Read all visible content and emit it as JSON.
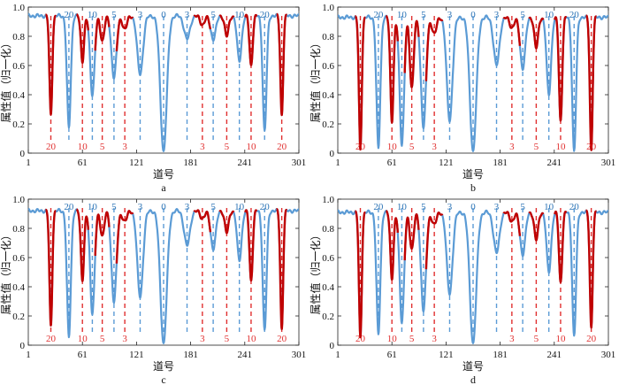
{
  "chart_data": [
    {
      "type": "line",
      "panel_label": "a",
      "xlabel": "道号",
      "ylabel": "属性值（归一化）",
      "xlim": [
        1,
        301
      ],
      "ylim": [
        0,
        1.0
      ],
      "xticks": [
        1,
        61,
        121,
        181,
        241,
        301
      ],
      "yticks": [
        0,
        0.2,
        0.4,
        0.6,
        0.8,
        1.0
      ],
      "xtick_labels": [
        "1",
        "61",
        "121",
        "181",
        "241",
        "301"
      ],
      "ytick_labels": [
        "0",
        "0.2",
        "0.4",
        "0.6",
        "0.8",
        "1.0"
      ],
      "baseline": 0.94,
      "colors": {
        "blue": "#5b9bd5",
        "red": "#c00000",
        "blue_text": "#2e75b6",
        "red_text": "#e03030"
      },
      "dips": [
        {
          "x": 26,
          "min": 0.26,
          "width": 2.2,
          "color": "red",
          "label": "20"
        },
        {
          "x": 46,
          "min": 0.17,
          "width": 3.0,
          "color": "blue",
          "label": "20"
        },
        {
          "x": 61,
          "min": 0.63,
          "width": 2.5,
          "color": "red",
          "label": "10"
        },
        {
          "x": 72,
          "min": 0.4,
          "width": 3.5,
          "color": "blue",
          "label": "10"
        },
        {
          "x": 83,
          "min": 0.77,
          "width": 3.0,
          "color": "red",
          "label": "5"
        },
        {
          "x": 96,
          "min": 0.52,
          "width": 4.0,
          "color": "blue",
          "label": "5"
        },
        {
          "x": 108,
          "min": 0.85,
          "width": 3.5,
          "color": "red",
          "label": "3"
        },
        {
          "x": 125,
          "min": 0.54,
          "width": 4.5,
          "color": "blue",
          "label": "3"
        },
        {
          "x": 151,
          "min": 0.01,
          "width": 5.0,
          "color": "blue",
          "label": "0"
        },
        {
          "x": 177,
          "min": 0.78,
          "width": 4.5,
          "color": "blue",
          "label": "3"
        },
        {
          "x": 194,
          "min": 0.88,
          "width": 3.5,
          "color": "red",
          "label": "3"
        },
        {
          "x": 206,
          "min": 0.78,
          "width": 4.0,
          "color": "blue",
          "label": "5"
        },
        {
          "x": 221,
          "min": 0.8,
          "width": 3.0,
          "color": "red",
          "label": "5"
        },
        {
          "x": 235,
          "min": 0.63,
          "width": 3.5,
          "color": "blue",
          "label": "10"
        },
        {
          "x": 248,
          "min": 0.6,
          "width": 2.5,
          "color": "red",
          "label": "10"
        },
        {
          "x": 263,
          "min": 0.15,
          "width": 3.0,
          "color": "blue",
          "label": "20"
        },
        {
          "x": 282,
          "min": 0.26,
          "width": 2.2,
          "color": "red",
          "label": "20"
        }
      ]
    },
    {
      "type": "line",
      "panel_label": "b",
      "xlabel": "道号",
      "ylabel": "属性值（归一化）",
      "xlim": [
        1,
        301
      ],
      "ylim": [
        0,
        1.0
      ],
      "xticks": [
        1,
        61,
        121,
        181,
        241,
        301
      ],
      "yticks": [
        0,
        0.2,
        0.4,
        0.6,
        0.8,
        1.0
      ],
      "xtick_labels": [
        "1",
        "61",
        "121",
        "181",
        "241",
        "301"
      ],
      "ytick_labels": [
        "0",
        "0.2",
        "0.4",
        "0.6",
        "0.8",
        "1.0"
      ],
      "baseline": 0.93,
      "colors": {
        "blue": "#5b9bd5",
        "red": "#c00000",
        "blue_text": "#2e75b6",
        "red_text": "#e03030"
      },
      "dips": [
        {
          "x": 26,
          "min": 0.02,
          "width": 2.2,
          "color": "red",
          "label": "20"
        },
        {
          "x": 46,
          "min": 0.03,
          "width": 3.0,
          "color": "blue",
          "label": "20"
        },
        {
          "x": 61,
          "min": 0.22,
          "width": 2.5,
          "color": "red",
          "label": "10"
        },
        {
          "x": 72,
          "min": 0.06,
          "width": 3.5,
          "color": "blue",
          "label": "10"
        },
        {
          "x": 83,
          "min": 0.45,
          "width": 3.0,
          "color": "red",
          "label": "5"
        },
        {
          "x": 96,
          "min": 0.18,
          "width": 4.0,
          "color": "blue",
          "label": "5"
        },
        {
          "x": 108,
          "min": 0.82,
          "width": 3.5,
          "color": "red",
          "label": "3"
        },
        {
          "x": 125,
          "min": 0.22,
          "width": 4.5,
          "color": "blue",
          "label": "3"
        },
        {
          "x": 151,
          "min": 0.01,
          "width": 5.0,
          "color": "blue",
          "label": "0"
        },
        {
          "x": 177,
          "min": 0.6,
          "width": 4.5,
          "color": "blue",
          "label": "3"
        },
        {
          "x": 194,
          "min": 0.86,
          "width": 3.5,
          "color": "red",
          "label": "3"
        },
        {
          "x": 206,
          "min": 0.58,
          "width": 4.0,
          "color": "blue",
          "label": "5"
        },
        {
          "x": 221,
          "min": 0.72,
          "width": 3.0,
          "color": "red",
          "label": "5"
        },
        {
          "x": 235,
          "min": 0.4,
          "width": 3.5,
          "color": "blue",
          "label": "10"
        },
        {
          "x": 248,
          "min": 0.22,
          "width": 2.5,
          "color": "red",
          "label": "10"
        },
        {
          "x": 263,
          "min": 0.01,
          "width": 3.0,
          "color": "blue",
          "label": "20"
        },
        {
          "x": 282,
          "min": 0.02,
          "width": 2.2,
          "color": "red",
          "label": "20"
        }
      ]
    },
    {
      "type": "line",
      "panel_label": "c",
      "xlabel": "道号",
      "ylabel": "属性值（归一化）",
      "xlim": [
        1,
        301
      ],
      "ylim": [
        0,
        1.0
      ],
      "xticks": [
        1,
        61,
        121,
        181,
        241,
        301
      ],
      "yticks": [
        0,
        0.2,
        0.4,
        0.6,
        0.8,
        1.0
      ],
      "xtick_labels": [
        "1",
        "61",
        "121",
        "181",
        "241",
        "301"
      ],
      "ytick_labels": [
        "0",
        "0.2",
        "0.4",
        "0.6",
        "0.8",
        "1.0"
      ],
      "baseline": 0.92,
      "colors": {
        "blue": "#5b9bd5",
        "red": "#c00000",
        "blue_text": "#2e75b6",
        "red_text": "#e03030"
      },
      "dips": [
        {
          "x": 26,
          "min": 0.13,
          "width": 2.2,
          "color": "red",
          "label": "20"
        },
        {
          "x": 46,
          "min": 0.05,
          "width": 3.0,
          "color": "blue",
          "label": "20"
        },
        {
          "x": 61,
          "min": 0.45,
          "width": 2.5,
          "color": "red",
          "label": "10"
        },
        {
          "x": 72,
          "min": 0.22,
          "width": 3.5,
          "color": "blue",
          "label": "10"
        },
        {
          "x": 83,
          "min": 0.75,
          "width": 3.0,
          "color": "red",
          "label": "5"
        },
        {
          "x": 96,
          "min": 0.3,
          "width": 4.0,
          "color": "blue",
          "label": "5"
        },
        {
          "x": 108,
          "min": 0.85,
          "width": 3.5,
          "color": "red",
          "label": "3"
        },
        {
          "x": 125,
          "min": 0.33,
          "width": 4.5,
          "color": "blue",
          "label": "3"
        },
        {
          "x": 151,
          "min": 0.01,
          "width": 5.0,
          "color": "blue",
          "label": "0"
        },
        {
          "x": 177,
          "min": 0.68,
          "width": 4.5,
          "color": "blue",
          "label": "3"
        },
        {
          "x": 194,
          "min": 0.87,
          "width": 3.5,
          "color": "red",
          "label": "3"
        },
        {
          "x": 206,
          "min": 0.66,
          "width": 4.0,
          "color": "blue",
          "label": "5"
        },
        {
          "x": 221,
          "min": 0.77,
          "width": 3.0,
          "color": "red",
          "label": "5"
        },
        {
          "x": 235,
          "min": 0.58,
          "width": 3.5,
          "color": "blue",
          "label": "10"
        },
        {
          "x": 248,
          "min": 0.44,
          "width": 2.5,
          "color": "red",
          "label": "10"
        },
        {
          "x": 263,
          "min": 0.1,
          "width": 3.0,
          "color": "blue",
          "label": "20"
        },
        {
          "x": 282,
          "min": 0.11,
          "width": 2.2,
          "color": "red",
          "label": "20"
        }
      ]
    },
    {
      "type": "line",
      "panel_label": "d",
      "xlabel": "道号",
      "ylabel": "属性值（归一化）",
      "xlim": [
        1,
        301
      ],
      "ylim": [
        0,
        1.0
      ],
      "xticks": [
        1,
        61,
        121,
        181,
        241,
        301
      ],
      "yticks": [
        0,
        0.2,
        0.4,
        0.6,
        0.8,
        1.0
      ],
      "xtick_labels": [
        "1",
        "61",
        "121",
        "181",
        "241",
        "301"
      ],
      "ytick_labels": [
        "0",
        "0.2",
        "0.4",
        "0.6",
        "0.8",
        "1.0"
      ],
      "baseline": 0.91,
      "colors": {
        "blue": "#5b9bd5",
        "red": "#c00000",
        "blue_text": "#2e75b6",
        "red_text": "#e03030"
      },
      "dips": [
        {
          "x": 26,
          "min": 0.05,
          "width": 2.2,
          "color": "red",
          "label": "20"
        },
        {
          "x": 46,
          "min": 0.07,
          "width": 3.0,
          "color": "blue",
          "label": "20"
        },
        {
          "x": 61,
          "min": 0.46,
          "width": 2.5,
          "color": "red",
          "label": "10"
        },
        {
          "x": 72,
          "min": 0.16,
          "width": 3.5,
          "color": "blue",
          "label": "10"
        },
        {
          "x": 83,
          "min": 0.66,
          "width": 3.0,
          "color": "red",
          "label": "5"
        },
        {
          "x": 96,
          "min": 0.24,
          "width": 4.0,
          "color": "blue",
          "label": "5"
        },
        {
          "x": 108,
          "min": 0.83,
          "width": 3.5,
          "color": "red",
          "label": "3"
        },
        {
          "x": 125,
          "min": 0.35,
          "width": 4.5,
          "color": "blue",
          "label": "3"
        },
        {
          "x": 151,
          "min": 0.01,
          "width": 5.0,
          "color": "blue",
          "label": "0"
        },
        {
          "x": 177,
          "min": 0.63,
          "width": 4.5,
          "color": "blue",
          "label": "3"
        },
        {
          "x": 194,
          "min": 0.85,
          "width": 3.5,
          "color": "red",
          "label": "3"
        },
        {
          "x": 206,
          "min": 0.62,
          "width": 4.0,
          "color": "blue",
          "label": "5"
        },
        {
          "x": 221,
          "min": 0.72,
          "width": 3.0,
          "color": "red",
          "label": "5"
        },
        {
          "x": 235,
          "min": 0.5,
          "width": 3.5,
          "color": "blue",
          "label": "10"
        },
        {
          "x": 248,
          "min": 0.43,
          "width": 2.5,
          "color": "red",
          "label": "10"
        },
        {
          "x": 263,
          "min": 0.06,
          "width": 3.0,
          "color": "blue",
          "label": "20"
        },
        {
          "x": 282,
          "min": 0.12,
          "width": 2.2,
          "color": "red",
          "label": "20"
        }
      ]
    }
  ]
}
